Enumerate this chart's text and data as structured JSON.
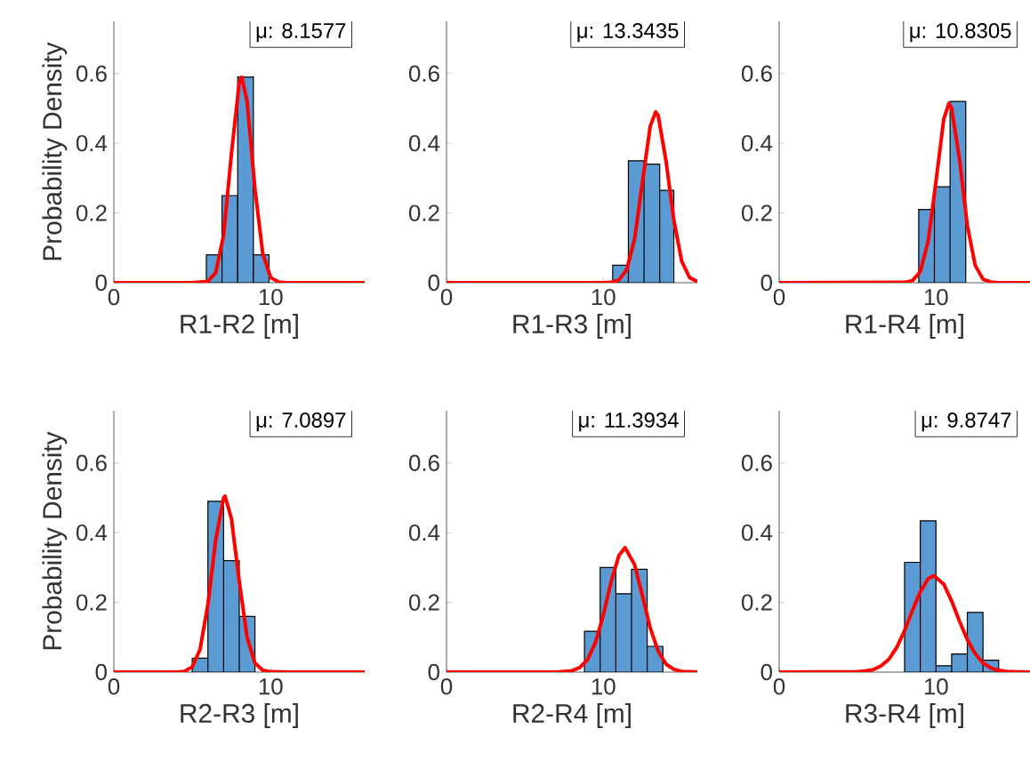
{
  "chart_data": [
    {
      "type": "histogram",
      "xlabel": "R1-R2 [m]",
      "ylabel": "Probability Density",
      "annotations": [
        "μ: 8.1577"
      ],
      "xlim": [
        0,
        16
      ],
      "ylim": [
        0,
        0.75
      ],
      "xticks": [
        0,
        10
      ],
      "yticks": [
        0,
        0.2,
        0.4,
        0.6
      ],
      "series": [
        {
          "type": "histogram",
          "color": "#5b9bd3",
          "bins": [
            5.9,
            6.9,
            7.9,
            8.9,
            9.9
          ],
          "values": [
            0.08,
            0.25,
            0.59,
            0.08
          ]
        },
        {
          "type": "line",
          "color": "#ff0000",
          "x": [
            0,
            5,
            6,
            6.5,
            7,
            7.5,
            8,
            8.16,
            8.5,
            9,
            9.5,
            10,
            10.5,
            11,
            16
          ],
          "values": [
            0,
            0,
            0.004,
            0.029,
            0.137,
            0.37,
            0.575,
            0.59,
            0.52,
            0.27,
            0.083,
            0.015,
            0.002,
            0,
            0
          ]
        }
      ]
    },
    {
      "type": "histogram",
      "xlabel": "R1-R3 [m]",
      "annotations": [
        "μ: 13.3435"
      ],
      "xlim": [
        0,
        16
      ],
      "ylim": [
        0,
        0.75
      ],
      "xticks": [
        0,
        10
      ],
      "yticks": [
        0,
        0.2,
        0.4,
        0.6
      ],
      "series": [
        {
          "type": "histogram",
          "color": "#5b9bd3",
          "bins": [
            10.6,
            11.6,
            12.6,
            13.6,
            14.5
          ],
          "values": [
            0.05,
            0.35,
            0.34,
            0.265
          ]
        },
        {
          "type": "line",
          "color": "#ff0000",
          "x": [
            0,
            10,
            10.5,
            11,
            11.5,
            12,
            12.5,
            13,
            13.34,
            13.5,
            14,
            14.5,
            15,
            15.5,
            16
          ],
          "values": [
            0,
            0,
            0.001,
            0.008,
            0.038,
            0.126,
            0.29,
            0.45,
            0.49,
            0.48,
            0.35,
            0.18,
            0.062,
            0.015,
            0.003
          ]
        }
      ]
    },
    {
      "type": "histogram",
      "xlabel": "R1-R4 [m]",
      "annotations": [
        "μ: 10.8305"
      ],
      "xlim": [
        0,
        16
      ],
      "ylim": [
        0,
        0.75
      ],
      "xticks": [
        0,
        10
      ],
      "yticks": [
        0,
        0.2,
        0.4,
        0.6
      ],
      "series": [
        {
          "type": "histogram",
          "color": "#5b9bd3",
          "bins": [
            8.9,
            9.9,
            10.9,
            11.9
          ],
          "values": [
            0.21,
            0.275,
            0.52
          ]
        },
        {
          "type": "line",
          "color": "#ff0000",
          "x": [
            0,
            8,
            8.5,
            9,
            9.5,
            10,
            10.5,
            10.83,
            11,
            11.5,
            12,
            12.5,
            13,
            13.5,
            14,
            16
          ],
          "values": [
            0,
            0.001,
            0.006,
            0.032,
            0.118,
            0.29,
            0.47,
            0.515,
            0.5,
            0.355,
            0.165,
            0.05,
            0.01,
            0.002,
            0,
            0
          ]
        }
      ]
    },
    {
      "type": "histogram",
      "xlabel": "R2-R3 [m]",
      "ylabel": "Probability Density",
      "annotations": [
        "μ: 7.0897"
      ],
      "xlim": [
        0,
        16
      ],
      "ylim": [
        0,
        0.75
      ],
      "xticks": [
        0,
        10
      ],
      "yticks": [
        0,
        0.2,
        0.4,
        0.6
      ],
      "series": [
        {
          "type": "histogram",
          "color": "#5b9bd3",
          "bins": [
            5.0,
            6.0,
            7.0,
            8.0,
            9.0
          ],
          "values": [
            0.04,
            0.49,
            0.32,
            0.16
          ]
        },
        {
          "type": "line",
          "color": "#ff0000",
          "x": [
            0,
            4,
            4.5,
            5,
            5.5,
            6,
            6.5,
            7,
            7.09,
            7.5,
            8,
            8.5,
            9,
            9.5,
            10,
            11,
            16
          ],
          "values": [
            0,
            0,
            0.002,
            0.015,
            0.065,
            0.195,
            0.38,
            0.5,
            0.505,
            0.44,
            0.26,
            0.1,
            0.026,
            0.005,
            0.001,
            0,
            0
          ]
        }
      ]
    },
    {
      "type": "histogram",
      "xlabel": "R2-R4 [m]",
      "annotations": [
        "μ: 11.3934"
      ],
      "xlim": [
        0,
        16
      ],
      "ylim": [
        0,
        0.75
      ],
      "xticks": [
        0,
        10
      ],
      "yticks": [
        0,
        0.2,
        0.4,
        0.6
      ],
      "series": [
        {
          "type": "histogram",
          "color": "#5b9bd3",
          "bins": [
            8.8,
            9.8,
            10.8,
            11.8,
            12.8,
            13.8
          ],
          "values": [
            0.117,
            0.3,
            0.225,
            0.295,
            0.074
          ]
        },
        {
          "type": "line",
          "color": "#ff0000",
          "x": [
            0,
            7,
            7.5,
            8,
            8.5,
            9,
            9.5,
            10,
            10.5,
            11,
            11.39,
            12,
            12.5,
            13,
            13.5,
            14,
            14.5,
            15,
            16
          ],
          "values": [
            0,
            0,
            0.002,
            0.004,
            0.013,
            0.036,
            0.085,
            0.163,
            0.26,
            0.335,
            0.357,
            0.308,
            0.218,
            0.126,
            0.06,
            0.023,
            0.008,
            0.002,
            0
          ]
        }
      ]
    },
    {
      "type": "histogram",
      "xlabel": "R3-R4 [m]",
      "annotations": [
        "μ: 9.8747"
      ],
      "xlim": [
        0,
        16
      ],
      "ylim": [
        0,
        0.75
      ],
      "xticks": [
        0,
        10
      ],
      "yticks": [
        0,
        0.2,
        0.4,
        0.6
      ],
      "series": [
        {
          "type": "histogram",
          "color": "#5b9bd3",
          "bins": [
            8,
            9,
            10,
            11,
            12,
            13,
            14
          ],
          "values": [
            0.315,
            0.434,
            0.018,
            0.052,
            0.171,
            0.034
          ]
        },
        {
          "type": "line",
          "color": "#ff0000",
          "x": [
            0,
            5,
            5.5,
            6,
            6.5,
            7,
            7.5,
            8,
            8.5,
            9,
            9.5,
            9.87,
            10.5,
            11,
            11.5,
            12,
            12.5,
            13,
            13.5,
            14,
            14.5,
            15,
            16
          ],
          "values": [
            0,
            0.001,
            0.003,
            0.007,
            0.018,
            0.037,
            0.071,
            0.119,
            0.177,
            0.23,
            0.268,
            0.277,
            0.252,
            0.204,
            0.146,
            0.093,
            0.053,
            0.026,
            0.012,
            0.005,
            0.002,
            0.001,
            0
          ]
        }
      ]
    }
  ]
}
